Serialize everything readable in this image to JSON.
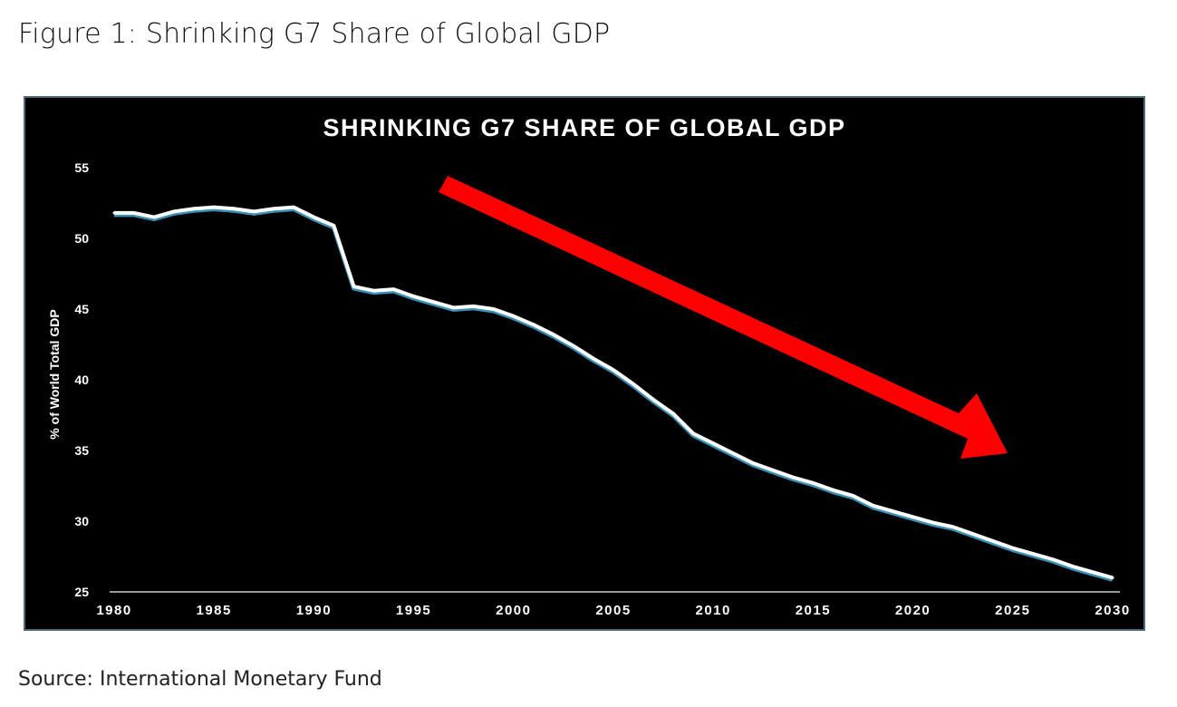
{
  "figure_title": "Figure 1: Shrinking G7 Share of Global GDP",
  "source": "Source: International Monetary Fund",
  "colors": {
    "background": "#000000",
    "line": "#ffffff",
    "line_shadow": "#3a8fb5",
    "arrow": "#ff0000",
    "frame": "#4f6b78"
  },
  "chart_data": {
    "type": "area",
    "title": "SHRINKING G7 SHARE OF GLOBAL GDP",
    "xlabel": "",
    "ylabel": "% of World Total GDP",
    "xlim": [
      1980,
      2030
    ],
    "ylim": [
      25,
      55
    ],
    "xticks": [
      "1980",
      "1985",
      "1990",
      "1995",
      "2000",
      "2005",
      "2010",
      "2015",
      "2020",
      "2025",
      "2030"
    ],
    "yticks": [
      "25",
      "30",
      "35",
      "40",
      "45",
      "50",
      "55"
    ],
    "grid": false,
    "annotation": "red downward-trend arrow",
    "x": [
      1980,
      1981,
      1982,
      1983,
      1984,
      1985,
      1986,
      1987,
      1988,
      1989,
      1990,
      1991,
      1992,
      1993,
      1994,
      1995,
      1996,
      1997,
      1998,
      1999,
      2000,
      2001,
      2002,
      2003,
      2004,
      2005,
      2006,
      2007,
      2008,
      2009,
      2010,
      2011,
      2012,
      2013,
      2014,
      2015,
      2016,
      2017,
      2018,
      2019,
      2020,
      2021,
      2022,
      2023,
      2024,
      2025,
      2026,
      2027,
      2028,
      2029,
      2030
    ],
    "values": [
      51.8,
      51.8,
      51.5,
      51.9,
      52.1,
      52.2,
      52.1,
      51.9,
      52.1,
      52.2,
      51.5,
      50.9,
      46.6,
      46.3,
      46.4,
      45.9,
      45.5,
      45.1,
      45.2,
      45.0,
      44.5,
      43.9,
      43.2,
      42.4,
      41.5,
      40.7,
      39.7,
      38.6,
      37.6,
      36.2,
      35.5,
      34.8,
      34.1,
      33.6,
      33.1,
      32.7,
      32.2,
      31.8,
      31.1,
      30.7,
      30.3,
      29.9,
      29.6,
      29.1,
      28.6,
      28.1,
      27.7,
      27.3,
      26.8,
      26.4,
      26.0
    ]
  }
}
